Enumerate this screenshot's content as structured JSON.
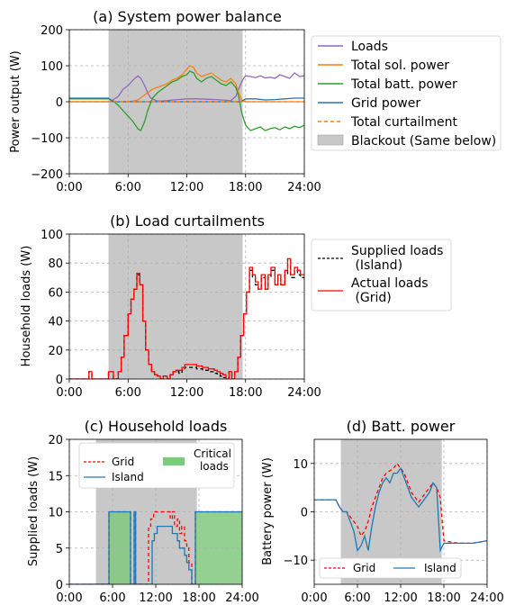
{
  "chart_data": [
    {
      "type": "line",
      "panel": "a",
      "title": "(a) System power balance",
      "xlabel": "",
      "ylabel": "Power output (W)",
      "xlim": [
        0,
        24
      ],
      "ylim": [
        -200,
        200
      ],
      "xticks": [
        "0:00",
        "6:00",
        "12:00",
        "18:00",
        "24:00"
      ],
      "yticks": [
        "−200",
        "−100",
        "0",
        "100",
        "200"
      ],
      "ytick_values": [
        -200,
        -100,
        0,
        100,
        200
      ],
      "grid": true,
      "legend_position": "outside-right",
      "blackout": {
        "start": 4.0,
        "end": 17.7,
        "label": "Blackout (Same below)",
        "color": "#c8c8c8"
      },
      "series": [
        {
          "name": "Loads",
          "color": "#9467bd",
          "dash": false,
          "x": [
            0,
            4,
            4.3,
            5,
            5.5,
            6,
            6.5,
            7,
            7.3,
            7.7,
            8,
            8.3,
            8.7,
            9,
            9.5,
            10,
            11,
            12,
            13,
            14,
            15,
            16,
            16.5,
            17,
            17.3,
            17.6,
            17.8,
            18,
            18.5,
            19,
            19.5,
            20,
            20.5,
            21,
            21.5,
            22,
            22.5,
            23,
            23.5,
            24
          ],
          "y": [
            0,
            0,
            2,
            15,
            35,
            45,
            60,
            72,
            65,
            45,
            25,
            10,
            5,
            2,
            2,
            3,
            6,
            8,
            8,
            7,
            6,
            4,
            3,
            15,
            35,
            55,
            65,
            72,
            70,
            67,
            72,
            66,
            68,
            65,
            75,
            70,
            65,
            80,
            70,
            72
          ]
        },
        {
          "name": "Total sol. power",
          "color": "#ff7f0e",
          "dash": false,
          "x": [
            0,
            4,
            6,
            6.5,
            7,
            7.5,
            8,
            8.5,
            9,
            9.5,
            10,
            10.5,
            11,
            11.5,
            12,
            12.3,
            12.7,
            13,
            13.5,
            14,
            14.5,
            15,
            15.5,
            16,
            16.5,
            17,
            17.3,
            17.6,
            18,
            24
          ],
          "y": [
            0,
            0,
            0,
            2,
            5,
            15,
            25,
            35,
            40,
            45,
            50,
            60,
            65,
            75,
            90,
            100,
            95,
            80,
            70,
            75,
            80,
            70,
            60,
            55,
            65,
            50,
            25,
            5,
            0,
            0
          ]
        },
        {
          "name": "Total batt. power",
          "color": "#2ca02c",
          "dash": false,
          "x": [
            0,
            4,
            4.5,
            5,
            5.5,
            6,
            6.5,
            7,
            7.3,
            7.7,
            8,
            8.5,
            9,
            9.5,
            10,
            10.5,
            11,
            11.5,
            12,
            12.3,
            12.7,
            13,
            13.5,
            14,
            14.5,
            15,
            15.5,
            16,
            16.5,
            17,
            17.3,
            17.6,
            18,
            18.5,
            19,
            19.5,
            20,
            20.5,
            21,
            21.5,
            22,
            22.5,
            23,
            23.5,
            24
          ],
          "y": [
            8,
            8,
            2,
            -10,
            -25,
            -40,
            -55,
            -75,
            -80,
            -55,
            -25,
            10,
            25,
            35,
            45,
            55,
            60,
            70,
            75,
            85,
            80,
            65,
            55,
            65,
            70,
            60,
            50,
            45,
            55,
            40,
            15,
            -30,
            -65,
            -80,
            -75,
            -70,
            -80,
            -75,
            -72,
            -78,
            -70,
            -75,
            -68,
            -72,
            -65
          ]
        },
        {
          "name": "Grid power",
          "color": "#1f77b4",
          "dash": false,
          "x": [
            0,
            4,
            4.2,
            4.5,
            5,
            6,
            8,
            10,
            12,
            14,
            16,
            17.5,
            17.7,
            18,
            19,
            20,
            21,
            22,
            23,
            24
          ],
          "y": [
            10,
            10,
            5,
            0,
            0,
            0,
            0,
            0,
            0,
            0,
            0,
            0,
            3,
            8,
            8,
            5,
            6,
            8,
            10,
            10
          ]
        },
        {
          "name": "Total curtailment",
          "color": "#ff7f0e",
          "dash": true,
          "x": [
            0,
            24
          ],
          "y": [
            0,
            0
          ]
        }
      ]
    },
    {
      "type": "line",
      "panel": "b",
      "title": "(b) Load curtailments",
      "xlabel": "",
      "ylabel": "Household loads (W)",
      "xlim": [
        0,
        24
      ],
      "ylim": [
        0,
        100
      ],
      "xticks": [
        "0:00",
        "6:00",
        "12:00",
        "18:00",
        "24:00"
      ],
      "yticks": [
        "0",
        "20",
        "40",
        "60",
        "80",
        "100"
      ],
      "ytick_values": [
        0,
        20,
        40,
        60,
        80,
        100
      ],
      "grid": true,
      "legend_position": "outside-right",
      "blackout": {
        "start": 4.0,
        "end": 17.7,
        "color": "#c8c8c8"
      },
      "series": [
        {
          "name": "Supplied loads\n (Island)",
          "color": "#000000",
          "dash": true,
          "step": true,
          "x": [
            0,
            2,
            2.3,
            4,
            4.5,
            5,
            5.3,
            5.6,
            6,
            6.3,
            6.6,
            6.9,
            7.2,
            7.5,
            7.8,
            8.1,
            8.4,
            8.7,
            9,
            9.3,
            9.6,
            10,
            10.3,
            10.6,
            10.9,
            11.2,
            11.5,
            11.8,
            12.1,
            12.4,
            12.7,
            13,
            13.3,
            13.6,
            13.9,
            14.2,
            14.5,
            14.8,
            15.1,
            15.4,
            15.7,
            16,
            16.3,
            16.6,
            16.9,
            17.2,
            17.5,
            17.8,
            18.1,
            18.4,
            18.7,
            19,
            19.3,
            19.6,
            20,
            20.3,
            20.6,
            21,
            21.3,
            21.6,
            22,
            22.3,
            22.6,
            23,
            23.3,
            23.6,
            24
          ],
          "y": [
            0,
            5,
            0,
            5,
            0,
            5,
            15,
            30,
            45,
            55,
            62,
            72,
            65,
            40,
            20,
            10,
            5,
            3,
            2,
            0,
            2,
            0,
            3,
            5,
            5,
            4,
            6,
            8,
            8,
            8,
            8,
            7,
            7,
            6,
            6,
            5,
            5,
            4,
            3,
            2,
            1,
            0,
            5,
            0,
            5,
            15,
            30,
            45,
            60,
            75,
            70,
            65,
            62,
            70,
            62,
            70,
            75,
            65,
            70,
            65,
            72,
            83,
            70,
            75,
            72,
            70,
            70
          ]
        },
        {
          "name": "Actual loads\n (Grid)",
          "color": "#ff0000",
          "dash": false,
          "step": true,
          "x": [
            0,
            2,
            2.3,
            4,
            4.5,
            5,
            5.3,
            5.6,
            6,
            6.3,
            6.6,
            6.9,
            7.2,
            7.5,
            7.8,
            8.1,
            8.4,
            8.7,
            9,
            9.3,
            9.6,
            10,
            10.3,
            10.6,
            10.9,
            11.2,
            11.5,
            11.8,
            12.1,
            12.4,
            12.7,
            13,
            13.3,
            13.6,
            13.9,
            14.2,
            14.5,
            14.8,
            15.1,
            15.4,
            15.7,
            16,
            16.3,
            16.6,
            16.9,
            17.2,
            17.5,
            17.8,
            18.1,
            18.4,
            18.7,
            19,
            19.3,
            19.6,
            20,
            20.3,
            20.6,
            21,
            21.3,
            21.6,
            22,
            22.3,
            22.6,
            23,
            23.3,
            23.6,
            24
          ],
          "y": [
            0,
            5,
            0,
            5,
            0,
            5,
            15,
            30,
            45,
            55,
            62,
            73,
            65,
            40,
            20,
            10,
            5,
            3,
            2,
            0,
            2,
            0,
            3,
            5,
            6,
            6,
            8,
            10,
            10,
            10,
            10,
            9,
            9,
            8,
            8,
            7,
            7,
            6,
            5,
            4,
            3,
            0,
            5,
            0,
            5,
            15,
            30,
            45,
            60,
            77,
            72,
            67,
            62,
            72,
            62,
            72,
            77,
            65,
            72,
            65,
            75,
            83,
            72,
            77,
            75,
            72,
            72
          ]
        }
      ]
    },
    {
      "type": "line",
      "panel": "c",
      "title": "(c) Household loads",
      "xlabel": "",
      "ylabel": "Supplied loads (W)",
      "xlim": [
        0,
        24
      ],
      "ylim": [
        0,
        20
      ],
      "xticks": [
        "0:00",
        "6:00",
        "12:00",
        "18:00",
        "24:00"
      ],
      "yticks": [
        "0",
        "5",
        "10",
        "15",
        "20"
      ],
      "ytick_values": [
        0,
        5,
        10,
        15,
        20
      ],
      "grid": true,
      "legend_position": "upper-center",
      "blackout": {
        "start": 3.7,
        "end": 17.7,
        "color": "#c8c8c8"
      },
      "critical": {
        "label": "Critical\n loads",
        "color": "#7fc97f",
        "spans": [
          [
            5.5,
            8.5
          ],
          [
            9.0,
            9.2
          ],
          [
            17.5,
            24
          ]
        ]
      },
      "series": [
        {
          "name": "Grid",
          "color": "#ff0000",
          "dash": true,
          "step": true,
          "x": [
            0,
            5.5,
            8.5,
            9.0,
            9.2,
            11.0,
            11.3,
            11.7,
            12.0,
            14.0,
            14.3,
            14.6,
            15.0,
            15.3,
            15.6,
            16.0,
            16.3,
            16.6,
            17.0,
            17.5,
            24
          ],
          "y": [
            0,
            10,
            0,
            10,
            0,
            8,
            9,
            10,
            10,
            9,
            10,
            8,
            9,
            7,
            8,
            6,
            5,
            3,
            0,
            10,
            10
          ]
        },
        {
          "name": "Island",
          "color": "#1f77b4",
          "dash": false,
          "step": true,
          "x": [
            0,
            5.5,
            8.5,
            9.0,
            9.2,
            11.0,
            11.5,
            11.8,
            12.2,
            14.0,
            14.3,
            14.6,
            15.0,
            15.3,
            15.6,
            16.0,
            16.3,
            16.6,
            17.0,
            17.5,
            24
          ],
          "y": [
            0,
            10,
            0,
            10,
            0,
            0,
            6,
            7,
            8,
            8,
            7,
            7,
            6,
            5,
            5,
            4,
            3,
            2,
            0,
            10,
            10
          ]
        }
      ]
    },
    {
      "type": "line",
      "panel": "d",
      "title": "(d) Batt. power",
      "xlabel": "",
      "ylabel": "Battery power (W)",
      "xlim": [
        0,
        24
      ],
      "ylim": [
        -15,
        15
      ],
      "xticks": [
        "0:00",
        "6:00",
        "12:00",
        "18:00",
        "24:00"
      ],
      "yticks": [
        "−10",
        "0",
        "10"
      ],
      "ytick_values": [
        -10,
        0,
        10
      ],
      "grid": true,
      "legend_position": "lower-center",
      "blackout": {
        "start": 3.7,
        "end": 17.7,
        "color": "#c8c8c8"
      },
      "series": [
        {
          "name": "Grid",
          "color": "#ff0000",
          "dash": true,
          "x": [
            0,
            3,
            3.5,
            4,
            4.5,
            5,
            5.5,
            6,
            6.5,
            7,
            7.5,
            8,
            8.5,
            9,
            9.5,
            10,
            10.5,
            11,
            11.5,
            12,
            12.5,
            13,
            13.5,
            14,
            14.5,
            15,
            15.5,
            16,
            16.5,
            17,
            17.5,
            18,
            20,
            22,
            24
          ],
          "y": [
            2.5,
            2.5,
            1,
            0,
            0,
            -1,
            -2,
            -3,
            -5,
            -4,
            -2,
            1,
            3,
            5,
            7,
            8,
            8.5,
            9,
            10,
            9,
            8,
            6,
            4,
            3,
            2,
            3,
            4,
            5,
            6,
            5,
            3,
            -6,
            -6.5,
            -6.5,
            -6
          ]
        },
        {
          "name": "Island",
          "color": "#1f77b4",
          "dash": false,
          "x": [
            0,
            3,
            3.5,
            4,
            4.5,
            5,
            5.5,
            6,
            6.5,
            7,
            7.5,
            8,
            8.5,
            9,
            9.5,
            10,
            10.5,
            11,
            11.5,
            12,
            12.5,
            13,
            13.5,
            14,
            14.5,
            15,
            15.5,
            16,
            16.5,
            17,
            17.5,
            18,
            20,
            22,
            24
          ],
          "y": [
            2.5,
            2.5,
            1,
            0,
            0,
            -2,
            -4,
            -8,
            -7,
            -5,
            -8,
            -3,
            1,
            4,
            6,
            7,
            6,
            8,
            8,
            9,
            7,
            5,
            3,
            2,
            1,
            2,
            3,
            4,
            6,
            5,
            -8,
            -6.5,
            -6.5,
            -6.5,
            -6
          ]
        }
      ]
    }
  ]
}
